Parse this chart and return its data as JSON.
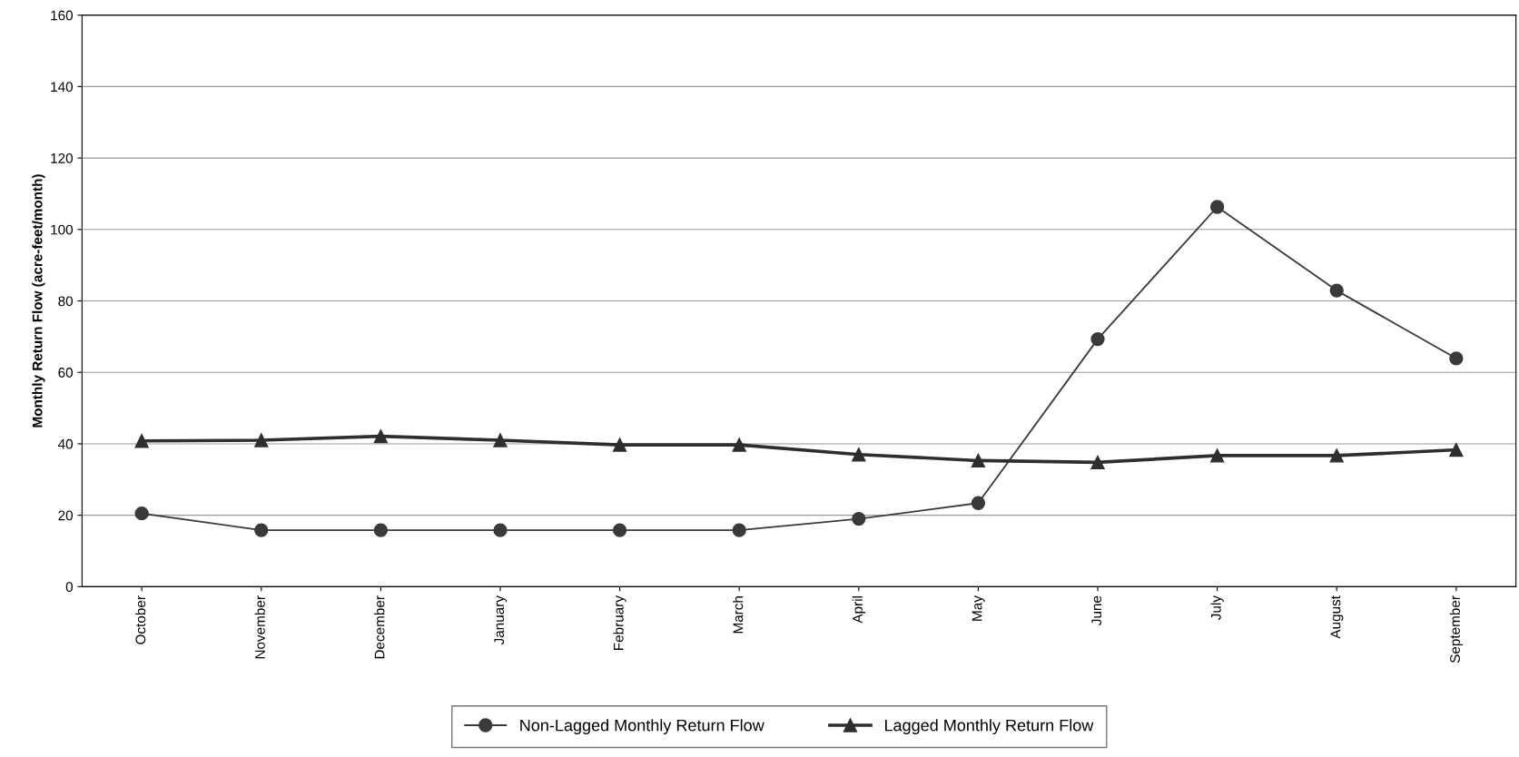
{
  "chart_data": {
    "type": "line",
    "ylabel": "Monthly Return Flow (acre-feet/month)",
    "categories": [
      "October",
      "November",
      "December",
      "January",
      "February",
      "March",
      "April",
      "May",
      "June",
      "July",
      "August",
      "September"
    ],
    "series": [
      {
        "name": "Non-Lagged Monthly Return Flow",
        "color": "#3a3a3a",
        "marker": "circle",
        "values": [
          20.5,
          15.8,
          15.8,
          15.8,
          15.8,
          15.8,
          19,
          23.4,
          69.3,
          106.3,
          82.9,
          63.9
        ]
      },
      {
        "name": "Lagged Monthly Return Flow",
        "color": "#2e2e2e",
        "marker": "triangle",
        "values": [
          40.8,
          41,
          42.1,
          41,
          39.7,
          39.7,
          37,
          35.3,
          34.8,
          36.7,
          36.7,
          38.3
        ]
      }
    ],
    "ylim": [
      0,
      160
    ],
    "yticks": [
      0,
      20,
      40,
      60,
      80,
      100,
      120,
      140,
      160
    ],
    "grid": "y",
    "legend": "bottom"
  }
}
